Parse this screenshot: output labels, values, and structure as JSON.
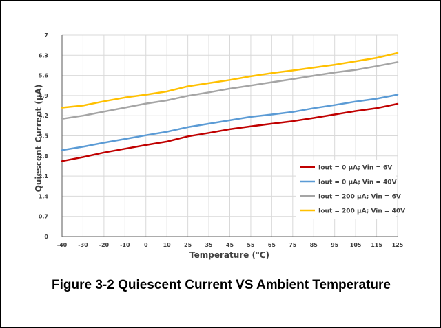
{
  "caption": "Figure 3-2 Quiescent Current VS Ambient Temperature",
  "chart_data": {
    "type": "line",
    "title": "",
    "xlabel": "Temperature (℃)",
    "ylabel": "Quiescent Current (µA)",
    "categories": [
      "-40",
      "-30",
      "-20",
      "-10",
      "0",
      "10",
      "25",
      "35",
      "45",
      "55",
      "65",
      "75",
      "85",
      "95",
      "105",
      "115",
      "125"
    ],
    "y_ticks": [
      "0",
      "0.7",
      "1.4",
      "2.1",
      "2.8",
      "3.5",
      "4.2",
      "4.9",
      "5.6",
      "6.3",
      "7"
    ],
    "ylim": [
      0,
      7
    ],
    "grid": true,
    "legend_position": "lower-right",
    "series": [
      {
        "name": "Iout = 0 µA; Vin = 6V",
        "color": "#c00000",
        "values": [
          2.62,
          2.76,
          2.92,
          3.05,
          3.18,
          3.3,
          3.48,
          3.6,
          3.73,
          3.83,
          3.92,
          4.01,
          4.12,
          4.24,
          4.36,
          4.46,
          4.61
        ]
      },
      {
        "name": "Iout = 0 µA; Vin = 40V",
        "color": "#5b9bd5",
        "values": [
          3.0,
          3.12,
          3.26,
          3.39,
          3.52,
          3.64,
          3.8,
          3.92,
          4.04,
          4.16,
          4.24,
          4.33,
          4.46,
          4.57,
          4.69,
          4.79,
          4.93
        ]
      },
      {
        "name": "Iout = 200 µA; Vin = 6V",
        "color": "#a5a5a5",
        "values": [
          4.09,
          4.2,
          4.34,
          4.48,
          4.62,
          4.73,
          4.89,
          5.01,
          5.14,
          5.25,
          5.36,
          5.47,
          5.59,
          5.7,
          5.79,
          5.92,
          6.06
        ]
      },
      {
        "name": "Iout = 200 µA; Vin = 40V",
        "color": "#ffc000",
        "values": [
          4.48,
          4.55,
          4.7,
          4.83,
          4.93,
          5.04,
          5.22,
          5.33,
          5.44,
          5.57,
          5.68,
          5.77,
          5.87,
          5.97,
          6.09,
          6.21,
          6.38
        ]
      }
    ]
  }
}
